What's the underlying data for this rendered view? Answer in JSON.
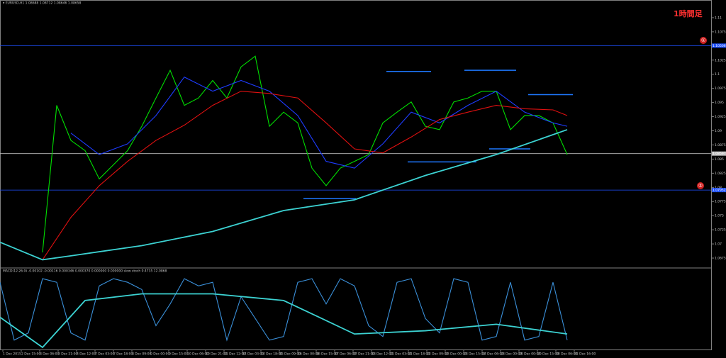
{
  "chart_data": [
    {
      "type": "line",
      "title": "▾ EURUSD,H1 1.08688 1.08712 1.08646 1.08658",
      "annotations": [
        "1時間足",
        "①",
        "②"
      ],
      "ylim": [
        1.0665,
        1.1125
      ],
      "yticks": [
        1.0675,
        1.07,
        1.0725,
        1.075,
        1.0775,
        1.08,
        1.0825,
        1.085,
        1.0875,
        1.09,
        1.0925,
        1.095,
        1.0975,
        1.1,
        1.1025,
        1.105,
        1.1075,
        1.11
      ],
      "grid": false,
      "time_labels": [
        "1 Dec 2015",
        "2 Dec 15:00",
        "3 Dec 06:00",
        "3 Dec 21:00",
        "4 Dec 12:00",
        "7 Dec 03:00",
        "7 Dec 18:00",
        "8 Dec 09:00",
        "9 Dec 00:00",
        "9 Dec 15:00",
        "10 Dec 06:00",
        "10 Dec 21:00",
        "11 Dec 12:00",
        "14 Dec 03:00",
        "14 Dec 18:00",
        "15 Dec 09:00",
        "16 Dec 00:00",
        "16 Dec 15:00",
        "17 Dec 06:00",
        "17 Dec 21:00",
        "18 Dec 12:00",
        "21 Dec 03:00",
        "21 Dec 18:00",
        "22 Dec 09:00",
        "23 Dec 00:00",
        "23 Dec 15:00",
        "24 Dec 06:00",
        "28 Dec 00:00",
        "29 Dec 00:00",
        "29 Dec 15:00",
        "30 Dec 06:00",
        "31 Dec 16:00"
      ],
      "levels": [
        {
          "value": 1.10506,
          "label": "1.10506",
          "color": "#1e50ff"
        },
        {
          "value": 1.07952,
          "label": "1.07952",
          "color": "#1e50ff"
        },
        {
          "value": 1.08597,
          "label": "1.08597",
          "color": "#c0c0c0"
        }
      ],
      "segments": [
        {
          "x": [
            24.25,
            27.4
          ],
          "value": 1.1005,
          "color": "#1e78ff"
        },
        {
          "x": [
            29.75,
            33.4
          ],
          "value": 1.1007,
          "color": "#1e78ff"
        },
        {
          "x": [
            34.25,
            37.4
          ],
          "value": 1.0964,
          "color": "#1e78ff"
        },
        {
          "x": [
            25.75,
            30.6
          ],
          "value": 1.0845,
          "color": "#1e78ff"
        },
        {
          "x": [
            18.4,
            22.1
          ],
          "value": 1.078,
          "color": "#1e78ff"
        },
        {
          "x": [
            31.5,
            34.4
          ],
          "value": 1.0868,
          "color": "#1e78ff"
        }
      ],
      "series": [
        {
          "name": "EURUSD",
          "color": "#00e000",
          "x": [
            0,
            1,
            2,
            3,
            4,
            5,
            6,
            7,
            8,
            9,
            10,
            11,
            12,
            13,
            14,
            15,
            16,
            17,
            18,
            19,
            20,
            21,
            22,
            23,
            24,
            25,
            26,
            27,
            28,
            29,
            30,
            31,
            32,
            33,
            34,
            35,
            36,
            37
          ],
          "values": [
            1.0685,
            1.0945,
            1.0883,
            1.0865,
            1.0815,
            1.084,
            1.0865,
            1.0908,
            1.0958,
            1.1007,
            1.0945,
            1.0958,
            1.0989,
            1.0958,
            1.1013,
            1.1032,
            1.0908,
            1.0933,
            1.0914,
            1.0834,
            1.0803,
            1.0834,
            1.0846,
            1.0858,
            1.0914,
            1.0933,
            1.0951,
            1.0908,
            1.0902,
            1.0951,
            1.0958,
            1.097,
            1.097,
            1.0902,
            1.0927,
            1.0927,
            1.0914,
            1.0858
          ]
        },
        {
          "name": "MA fast",
          "color": "#1e3cff",
          "x": [
            2,
            4,
            6,
            8,
            10,
            12,
            14,
            16,
            18,
            20,
            22,
            24,
            26,
            28,
            30,
            32,
            34,
            36,
            37
          ],
          "values": [
            1.0896,
            1.0858,
            1.0877,
            1.0927,
            1.0995,
            1.097,
            1.0989,
            1.097,
            1.0927,
            1.0846,
            1.0834,
            1.0877,
            1.0933,
            1.0914,
            1.0945,
            1.097,
            1.0933,
            1.0914,
            1.0908
          ]
        },
        {
          "name": "MA mid",
          "color": "#e01010",
          "x": [
            0,
            2,
            4,
            6,
            8,
            10,
            12,
            14,
            16,
            18,
            20,
            22,
            24,
            26,
            28,
            30,
            32,
            34,
            36,
            37
          ],
          "values": [
            1.0672,
            1.0747,
            1.0803,
            1.0846,
            1.0883,
            1.091,
            1.0945,
            1.097,
            1.0966,
            1.0958,
            1.0914,
            1.0868,
            1.0861,
            1.0889,
            1.092,
            1.0933,
            1.0945,
            1.0939,
            1.0937,
            1.0927
          ]
        },
        {
          "name": "MA slow",
          "color": "#3cd2d2",
          "x": [
            -3,
            0,
            2,
            7,
            12,
            17,
            22,
            27,
            32,
            37
          ],
          "values": [
            1.0703,
            1.0672,
            1.0679,
            1.0697,
            1.0722,
            1.0759,
            1.0778,
            1.0821,
            1.0858,
            1.0902
          ]
        }
      ]
    },
    {
      "type": "line",
      "title": "MACD(12,26,9) -0.00102 -0.00116 0.000346 0.000370 0.000000 0.000000 slow stoch 0.4735 12.0868",
      "ylim": [
        0,
        100
      ],
      "series": [
        {
          "name": "stoch",
          "color": "#3a8fd8",
          "x": [
            -3,
            -2,
            -1,
            0,
            1,
            2,
            3,
            4,
            5,
            6,
            7,
            8,
            9,
            10,
            11,
            12,
            13,
            14,
            15,
            16,
            17,
            18,
            19,
            20,
            21,
            22,
            23,
            24,
            25,
            26,
            27,
            28,
            29,
            30,
            31,
            32,
            33,
            34,
            35,
            36,
            37
          ],
          "values": [
            90,
            10,
            20,
            95,
            90,
            20,
            10,
            85,
            95,
            90,
            80,
            30,
            60,
            95,
            85,
            90,
            10,
            70,
            40,
            10,
            15,
            90,
            95,
            60,
            95,
            85,
            30,
            15,
            90,
            95,
            40,
            20,
            95,
            90,
            10,
            15,
            90,
            10,
            15,
            90,
            10
          ]
        },
        {
          "name": "trend",
          "color": "#3cd2d2",
          "x": [
            -3,
            0,
            3,
            7,
            12,
            17,
            19.5,
            22,
            27,
            32,
            37
          ],
          "values": [
            41.7,
            0,
            64.8,
            74,
            74,
            64.8,
            41.7,
            18.5,
            23,
            32,
            18.5
          ]
        }
      ]
    }
  ]
}
